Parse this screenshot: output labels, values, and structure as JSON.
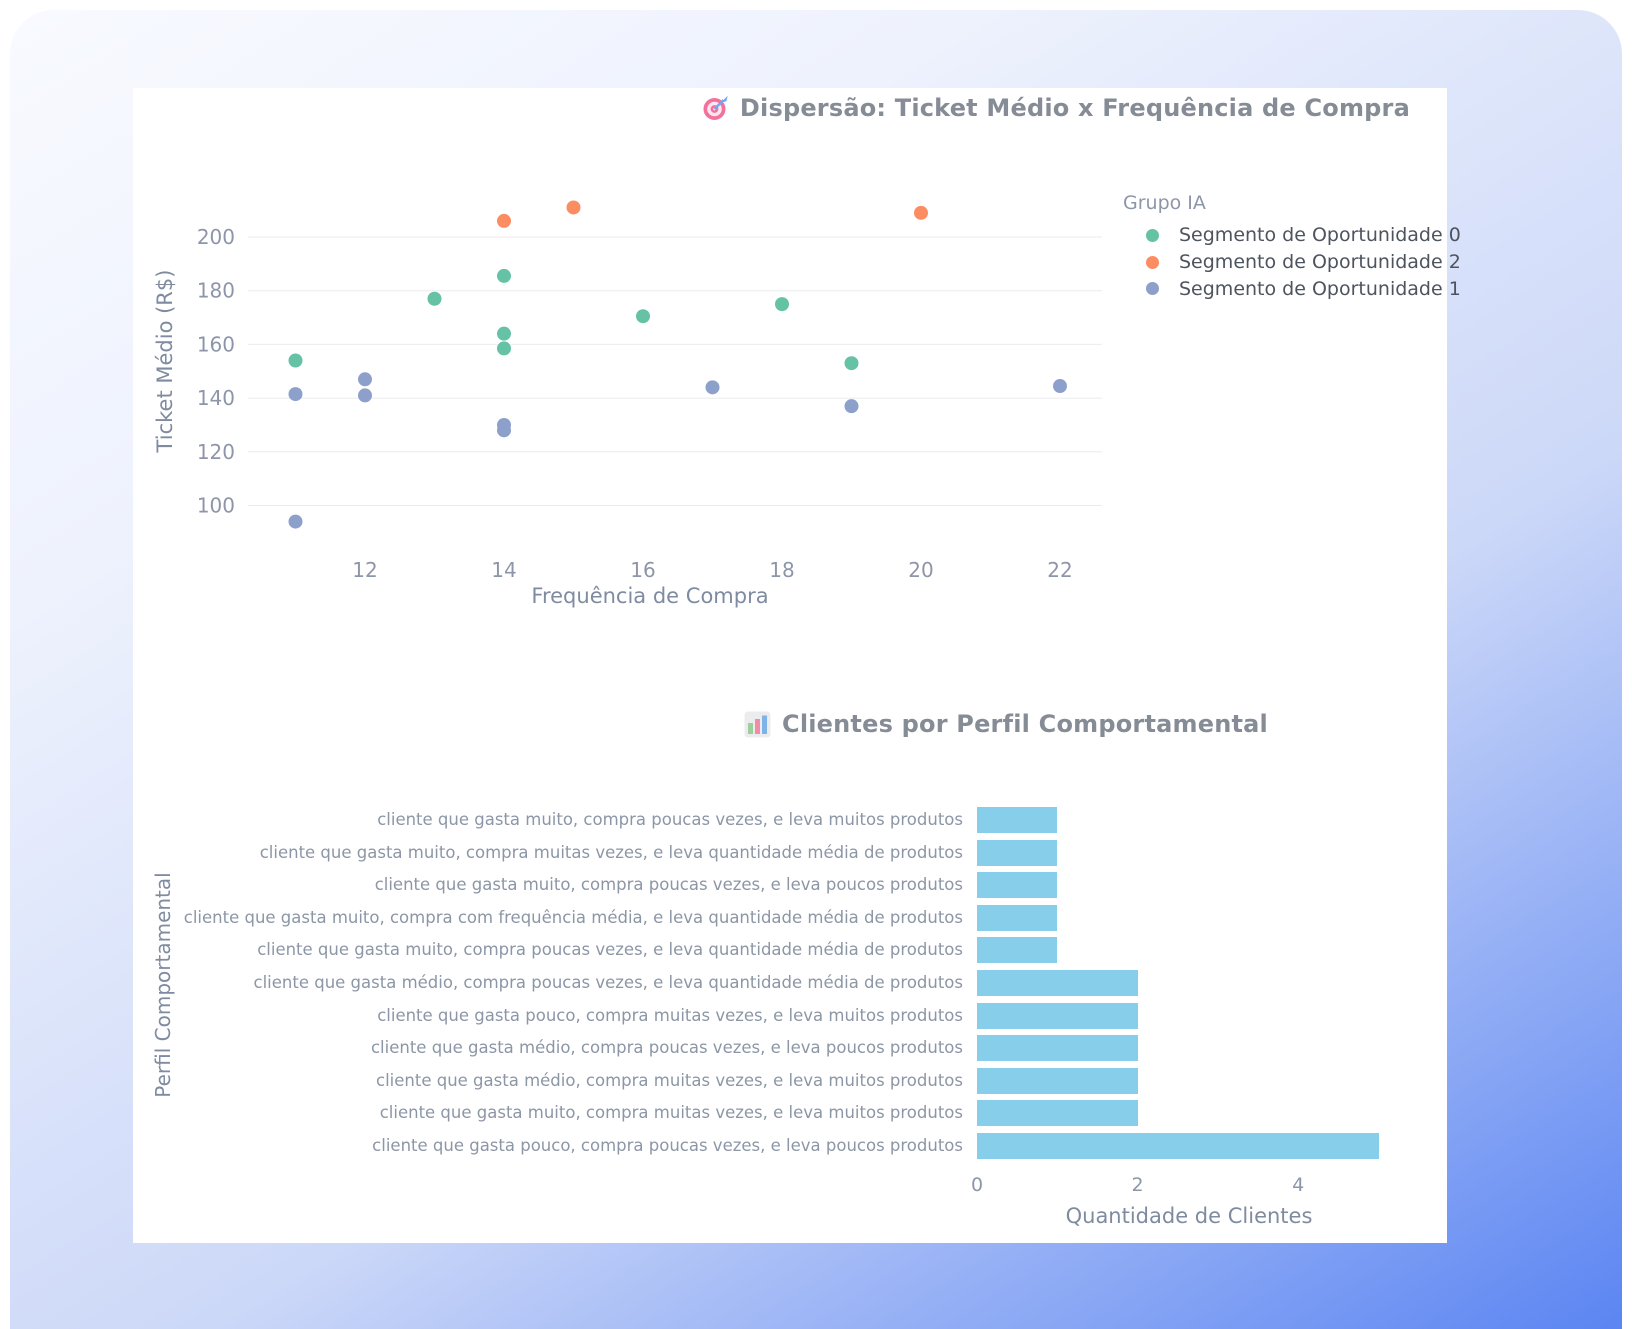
{
  "page": {
    "background_gradient": [
      "#f8faff",
      "#eef2fd",
      "#ccd8f8",
      "#5b85f2"
    ],
    "card_color": "#ffffff"
  },
  "icons": {
    "scatter_title_icon": "dart-target",
    "bar_title_icon": "bar-chart"
  },
  "chart_data": [
    {
      "type": "scatter",
      "title": "Dispersão: Ticket Médio x Frequência de Compra",
      "xlabel": "Frequência de Compra",
      "ylabel": "Ticket Médio (R$)",
      "legend_title": "Grupo IA",
      "legend_position": "top-right",
      "grid": "horizontal-only",
      "grid_color": "#ebebee",
      "xlim": [
        10.32,
        22.6
      ],
      "ylim": [
        89.6,
        217.5
      ],
      "xticks": [
        12,
        14,
        16,
        18,
        20,
        22
      ],
      "yticks": [
        100,
        120,
        140,
        160,
        180,
        200
      ],
      "series": [
        {
          "name": "Segmento de Oportunidade 0",
          "color": "#66c2a5",
          "points": [
            [
              11,
              154
            ],
            [
              13,
              177
            ],
            [
              14,
              185.5
            ],
            [
              14,
              164
            ],
            [
              14,
              158.5
            ],
            [
              16,
              170.5
            ],
            [
              18,
              175
            ],
            [
              19,
              153
            ]
          ]
        },
        {
          "name": "Segmento de Oportunidade 2",
          "color": "#fc8d62",
          "points": [
            [
              14,
              206
            ],
            [
              15,
              211
            ],
            [
              20,
              209
            ]
          ]
        },
        {
          "name": "Segmento de Oportunidade 1",
          "color": "#8da0cb",
          "points": [
            [
              11,
              141.5
            ],
            [
              11,
              94
            ],
            [
              12,
              147
            ],
            [
              12,
              141
            ],
            [
              14,
              130
            ],
            [
              14,
              128
            ],
            [
              17,
              144
            ],
            [
              19,
              137
            ],
            [
              22,
              144.5
            ]
          ]
        }
      ]
    },
    {
      "type": "bar",
      "orientation": "horizontal",
      "title": "Clientes por Perfil Comportamental",
      "xlabel": "Quantidade de Clientes",
      "ylabel": "Perfil Comportamental",
      "bar_color": "#87ceeb",
      "xticks": [
        0,
        2,
        4
      ],
      "xlim": [
        0,
        5.15
      ],
      "categories": [
        "cliente que gasta muito, compra poucas vezes, e leva muitos produtos",
        "cliente que gasta muito, compra muitas vezes, e leva quantidade média de produtos",
        "cliente que gasta muito, compra poucas vezes, e leva poucos produtos",
        "cliente que gasta muito, compra com frequência média, e leva quantidade média de produtos",
        "cliente que gasta muito, compra poucas vezes, e leva quantidade média de produtos",
        "cliente que gasta médio, compra poucas vezes, e leva quantidade média de produtos",
        "cliente que gasta pouco, compra muitas vezes, e leva muitos produtos",
        "cliente que gasta médio, compra poucas vezes, e leva poucos produtos",
        "cliente que gasta médio, compra muitas vezes, e leva muitos produtos",
        "cliente que gasta muito, compra muitas vezes, e leva muitos produtos",
        "cliente que gasta pouco, compra poucas vezes, e leva poucos produtos"
      ],
      "values": [
        1,
        1,
        1,
        1,
        1,
        2,
        2,
        2,
        2,
        2,
        5
      ]
    }
  ]
}
